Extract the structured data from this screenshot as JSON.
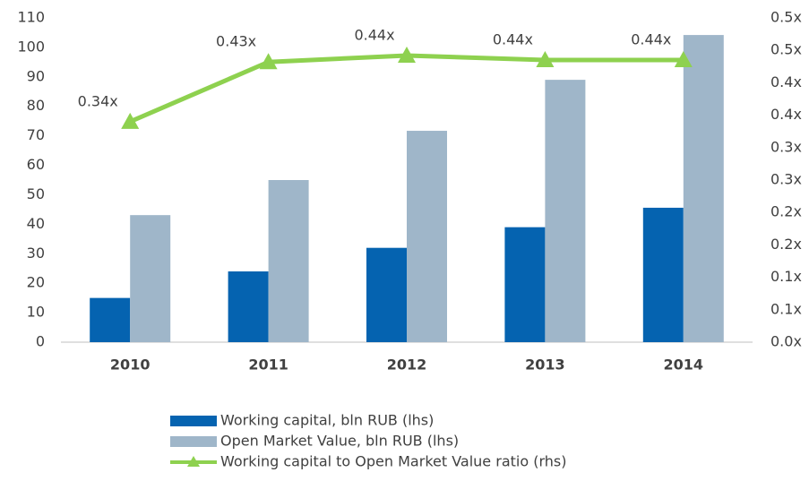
{
  "chart_data": {
    "type": "bar",
    "categories": [
      "2010",
      "2011",
      "2012",
      "2013",
      "2014"
    ],
    "series": [
      {
        "name": "Working capital, bln RUB (lhs)",
        "color": "#0563b0",
        "type": "bar",
        "values": [
          15,
          24,
          32,
          39,
          45.6
        ]
      },
      {
        "name": "Open Market Value, bln RUB (lhs)",
        "color": "#9fb6c9",
        "type": "bar",
        "values": [
          43.1,
          55,
          71.7,
          89,
          104.2
        ]
      },
      {
        "name": "Working capital to Open Market Value ratio (rhs)",
        "color": "#8ed14f",
        "type": "line",
        "axis": "y2",
        "values": [
          0.34,
          0.432,
          0.442,
          0.435,
          0.435
        ],
        "value_labels": [
          "0.34x",
          "0.43x",
          "0.44x",
          "0.44x",
          "0.44x"
        ]
      }
    ],
    "ylim": [
      0,
      110
    ],
    "yticks": [
      0,
      10,
      20,
      30,
      40,
      50,
      60,
      70,
      80,
      90,
      100,
      110
    ],
    "y2lim": [
      0,
      0.5
    ],
    "y2ticks": [
      {
        "value": 0,
        "label": "0.0x"
      },
      {
        "value": 0.05,
        "label": "0.1x"
      },
      {
        "value": 0.1,
        "label": "0.1x"
      },
      {
        "value": 0.15,
        "label": "0.2x"
      },
      {
        "value": 0.2,
        "label": "0.2x"
      },
      {
        "value": 0.25,
        "label": "0.3x"
      },
      {
        "value": 0.3,
        "label": "0.3x"
      },
      {
        "value": 0.35,
        "label": "0.4x"
      },
      {
        "value": 0.4,
        "label": "0.4x"
      },
      {
        "value": 0.45,
        "label": "0.5x"
      },
      {
        "value": 0.5,
        "label": "0.5x"
      }
    ],
    "grid": false,
    "legend": "bottom"
  }
}
